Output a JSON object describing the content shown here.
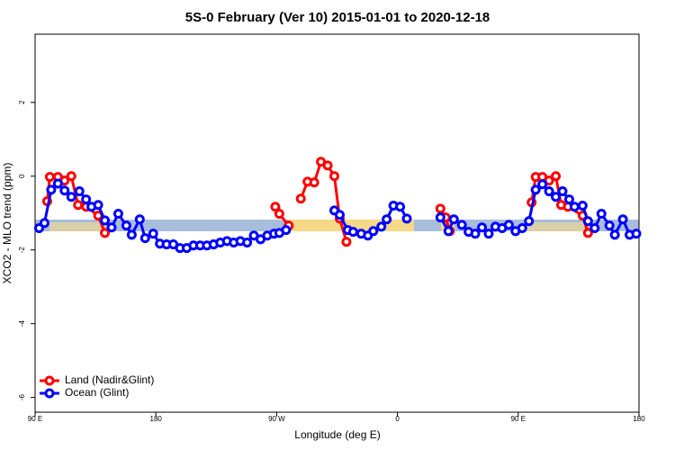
{
  "chart_data": {
    "type": "line",
    "title": "5S-0 February (Ver 10)   2015-01-01 to 2020-12-18",
    "x_label": "Longitude (deg E)",
    "y_label": "XCO2 - MLO trend (ppm)",
    "xlim": [
      90,
      540
    ],
    "ylim": [
      -6.4,
      3.85
    ],
    "xticks": [
      {
        "value": 90,
        "label": "90 E"
      },
      {
        "value": 180,
        "label": "180"
      },
      {
        "value": 270,
        "label": "90 W"
      },
      {
        "value": 360,
        "label": "0"
      },
      {
        "value": 450,
        "label": "90 E"
      },
      {
        "value": 540,
        "label": "180"
      }
    ],
    "yticks": [
      -6,
      -4,
      -2,
      0,
      2
    ],
    "legend": "bottom-left",
    "series": [
      {
        "name": "Land (Nadir&Glint)",
        "color": "#ff0000",
        "x": [
          99,
          101,
          107,
          112,
          117,
          122,
          128,
          137,
          142,
          200,
          269,
          272,
          279,
          285,
          288,
          293,
          298,
          303,
          308,
          313,
          317,
          322,
          360,
          392,
          396,
          399,
          430,
          460,
          463,
          468,
          473,
          478,
          482,
          487,
          498,
          502
        ],
        "values": [
          -0.68,
          -0.02,
          -0.02,
          -0.12,
          0.0,
          -0.78,
          -0.83,
          -1.07,
          -1.54,
          null,
          -0.83,
          -1.02,
          -1.34,
          null,
          -0.61,
          -0.15,
          -0.17,
          0.39,
          0.29,
          0.0,
          -1.15,
          -1.78,
          null,
          -0.88,
          -1.12,
          -1.49,
          null,
          -0.71,
          -0.02,
          -0.02,
          -0.12,
          0.0,
          -0.78,
          -0.83,
          -1.07,
          -1.54
        ]
      },
      {
        "name": "Ocean (Glint)",
        "color": "#0000ff",
        "x": [
          93,
          97,
          102,
          107,
          112,
          117,
          123,
          128,
          132,
          137,
          142,
          147,
          152,
          158,
          162,
          168,
          172,
          178,
          183,
          188,
          193,
          198,
          203,
          208,
          213,
          218,
          223,
          228,
          233,
          238,
          243,
          248,
          253,
          258,
          263,
          268,
          272,
          277,
          300,
          313,
          317,
          323,
          327,
          333,
          338,
          342,
          348,
          352,
          357,
          362,
          367,
          380,
          392,
          398,
          402,
          408,
          413,
          418,
          423,
          428,
          433,
          438,
          443,
          448,
          453,
          458,
          463,
          468,
          473,
          478,
          483,
          488,
          492,
          498,
          502,
          507,
          512,
          518,
          522,
          528,
          533,
          538
        ],
        "values": [
          -1.41,
          -1.27,
          -0.37,
          -0.2,
          -0.39,
          -0.56,
          -0.41,
          -0.63,
          -0.83,
          -0.78,
          -1.2,
          -1.39,
          -1.02,
          -1.34,
          -1.59,
          -1.17,
          -1.68,
          -1.56,
          -1.83,
          -1.85,
          -1.85,
          -1.95,
          -1.95,
          -1.88,
          -1.88,
          -1.88,
          -1.85,
          -1.8,
          -1.76,
          -1.8,
          -1.76,
          -1.8,
          -1.61,
          -1.71,
          -1.61,
          -1.56,
          -1.54,
          -1.46,
          null,
          -0.93,
          -1.05,
          -1.46,
          -1.51,
          -1.56,
          -1.61,
          -1.49,
          -1.37,
          -1.17,
          -0.8,
          -0.83,
          -1.15,
          null,
          -1.12,
          -1.49,
          -1.17,
          -1.32,
          -1.51,
          -1.56,
          -1.39,
          -1.56,
          -1.37,
          -1.41,
          -1.32,
          -1.49,
          -1.41,
          -1.22,
          -0.37,
          -0.22,
          -0.41,
          -0.56,
          -0.41,
          -0.63,
          -0.83,
          -0.8,
          -1.22,
          -1.41,
          -1.02,
          -1.34,
          -1.59,
          -1.17,
          -1.59,
          -1.56
        ]
      }
    ]
  }
}
